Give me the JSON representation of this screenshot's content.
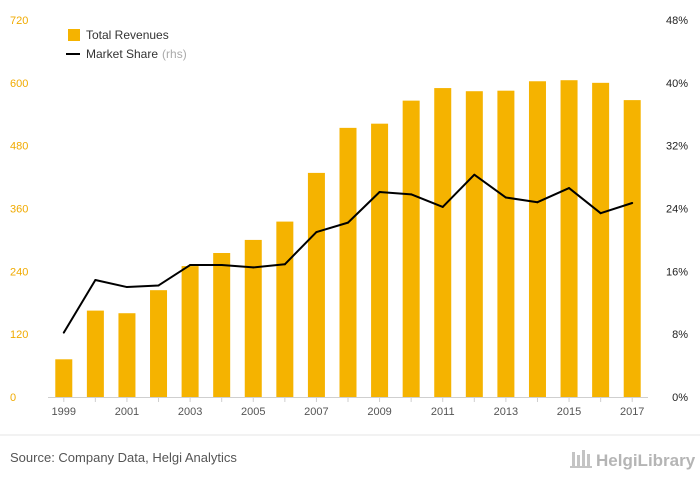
{
  "chart_data": {
    "type": "bar",
    "categories": [
      "1999",
      "2000",
      "2001",
      "2002",
      "2003",
      "2004",
      "2005",
      "2006",
      "2007",
      "2008",
      "2009",
      "2010",
      "2011",
      "2012",
      "2013",
      "2014",
      "2015",
      "2016",
      "2017"
    ],
    "x_tick_labels": [
      "1999",
      "2001",
      "2003",
      "2005",
      "2007",
      "2009",
      "2011",
      "2013",
      "2015",
      "2017"
    ],
    "series": [
      {
        "name": "Total Revenues",
        "type": "bar",
        "axis": "left",
        "color": "#f5b300",
        "values": [
          72,
          165,
          160,
          204,
          250,
          275,
          300,
          335,
          428,
          514,
          522,
          566,
          590,
          584,
          585,
          603,
          605,
          600,
          567
        ]
      },
      {
        "name": "Market Share",
        "name_suffix": "(rhs)",
        "type": "line",
        "axis": "right",
        "color": "#000000",
        "values": [
          8.2,
          14.9,
          14.0,
          14.2,
          16.8,
          16.8,
          16.5,
          16.9,
          21.0,
          22.2,
          26.1,
          25.8,
          24.2,
          28.3,
          25.4,
          24.8,
          26.6,
          23.4,
          24.7
        ]
      }
    ],
    "y_left": {
      "min": 0,
      "max": 720,
      "ticks": [
        "0",
        "120",
        "240",
        "360",
        "480",
        "600",
        "720"
      ]
    },
    "y_right": {
      "min": 0,
      "max": 48,
      "ticks": [
        "0%",
        "8%",
        "16%",
        "24%",
        "32%",
        "40%",
        "48%"
      ]
    },
    "legend_position": "top-left",
    "grid": false
  },
  "footer": {
    "source": "Source: Company Data, Helgi Analytics",
    "brand": "HelgiLibrary"
  }
}
